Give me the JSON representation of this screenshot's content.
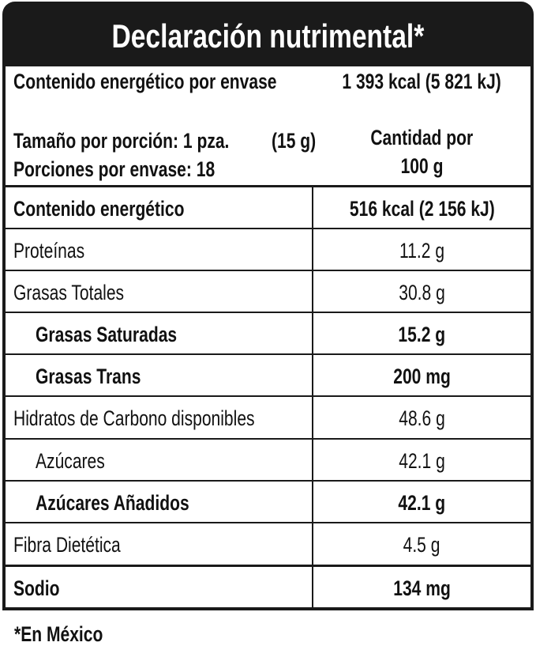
{
  "header": {
    "title": "Declaración nutrimental*"
  },
  "energy_per_container": {
    "label": "Contenido energético por envase",
    "value": "1 393 kcal (5 821 kJ)"
  },
  "serving": {
    "size_label": "Tamaño por porción: 1 pza.",
    "size_value": "(15 g)",
    "servings": "Porciones por envase: 18",
    "column_line1": "Cantidad por",
    "column_line2": "100 g"
  },
  "table": {
    "rows": [
      [
        "Contenido energético",
        "516 kcal  (2 156 kJ)"
      ],
      [
        "Proteínas",
        "11.2 g"
      ],
      [
        "Grasas Totales",
        "30.8 g"
      ],
      [
        "Grasas Saturadas",
        "15.2 g"
      ],
      [
        "Grasas Trans",
        "200 mg"
      ],
      [
        "Hidratos de Carbono disponibles",
        "48.6 g"
      ],
      [
        "Azúcares",
        "42.1 g"
      ],
      [
        "Azúcares Añadidos",
        "42.1 g"
      ],
      [
        "Fibra Dietética",
        "4.5 g"
      ],
      [
        "Sodio",
        "134 mg"
      ]
    ]
  },
  "footnote": "*En México"
}
